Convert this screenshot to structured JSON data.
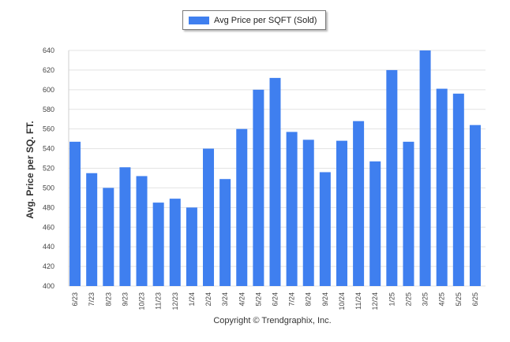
{
  "chart_data": {
    "type": "bar",
    "categories": [
      "6/23",
      "7/23",
      "8/23",
      "9/23",
      "10/23",
      "11/23",
      "12/23",
      "1/24",
      "2/24",
      "3/24",
      "4/24",
      "5/24",
      "6/24",
      "7/24",
      "8/24",
      "9/24",
      "10/24",
      "11/24",
      "12/24",
      "1/25",
      "2/25",
      "3/25",
      "4/25",
      "5/25",
      "6/25"
    ],
    "series": [
      {
        "name": "Avg Price per SQFT (Sold)",
        "values": [
          547,
          515,
          500,
          521,
          512,
          485,
          489,
          480,
          540,
          509,
          560,
          600,
          612,
          557,
          549,
          516,
          548,
          568,
          527,
          620,
          547,
          640,
          601,
          596,
          564
        ]
      }
    ],
    "title": "",
    "xlabel": "",
    "ylabel": "Avg. Price per SQ. FT.",
    "ylim": [
      400,
      640
    ],
    "yticks": [
      400,
      420,
      440,
      460,
      480,
      500,
      520,
      540,
      560,
      580,
      600,
      620,
      640
    ],
    "grid": true,
    "legend_position": "top-center",
    "bar_color": "#3f7fef"
  },
  "footer": {
    "copyright": "Copyright © Trendgraphix, Inc."
  }
}
